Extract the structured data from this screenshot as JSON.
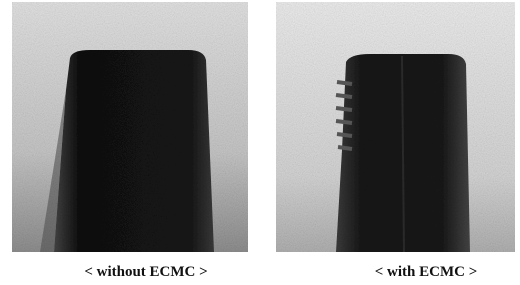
{
  "panels": [
    {
      "caption": "< without ECMC >"
    },
    {
      "caption": "< with ECMC >"
    }
  ]
}
